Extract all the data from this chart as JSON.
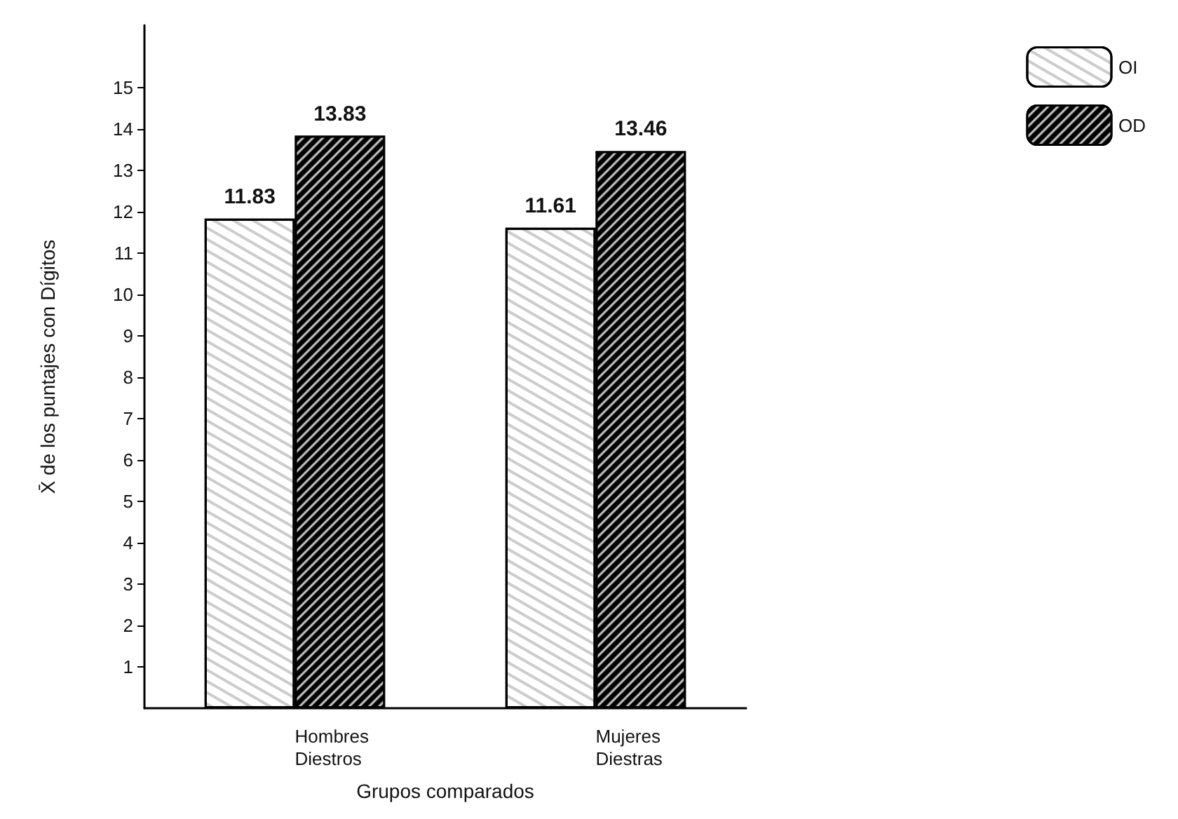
{
  "chart_data": {
    "type": "bar",
    "xlabel": "Grupos comparados",
    "ylabel": "X̄ de los puntajes con Dígitos",
    "categories": [
      "Hombres\nDiestros",
      "Mujeres\nDiestras"
    ],
    "series": [
      {
        "name": "OI",
        "color": "#ffffff",
        "values": [
          11.83,
          11.61
        ]
      },
      {
        "name": "OD",
        "color": "#000000",
        "values": [
          13.83,
          13.46
        ]
      }
    ],
    "ylim": [
      0,
      16.5
    ],
    "yticks": [
      1,
      2,
      3,
      4,
      5,
      6,
      7,
      8,
      9,
      10,
      11,
      12,
      13,
      14,
      15
    ],
    "data_labels": true,
    "legend": "top right",
    "grid": false
  }
}
